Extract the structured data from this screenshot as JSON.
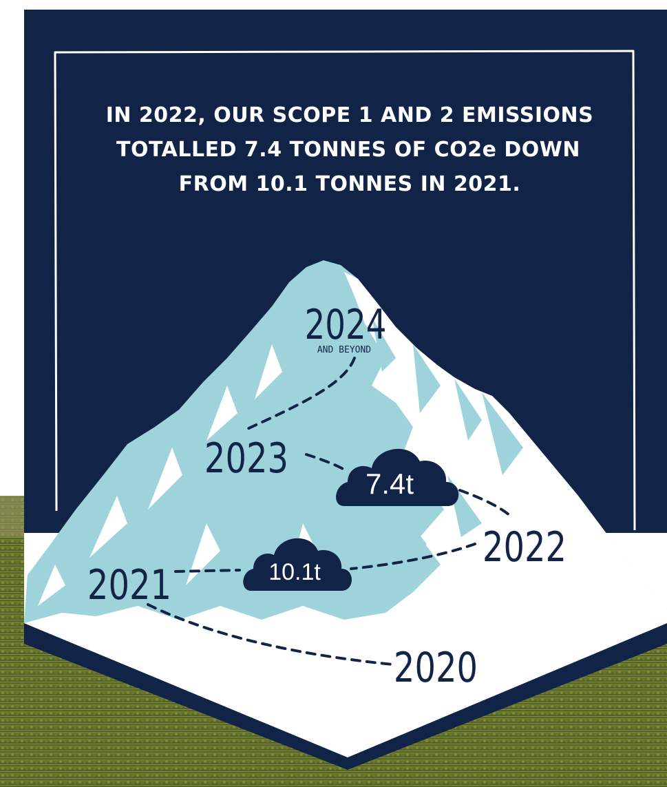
{
  "headline": {
    "line1": "IN 2022, OUR SCOPE 1 AND 2 EMISSIONS",
    "line2": "TOTALLED 7.4 TONNES OF CO2e DOWN",
    "line3": "FROM 10.1 TONNES IN 2021."
  },
  "timeline": {
    "y2024": "2024",
    "y2024_sub": "AND BEYOND",
    "y2023": "2023",
    "y2022": "2022",
    "y2021": "2021",
    "y2020": "2020"
  },
  "emissions": {
    "value_2022": "7.4t",
    "value_2021": "10.1t"
  },
  "colors": {
    "navy": "#112448",
    "ice_blue": "#9fd3dc",
    "snow": "#ffffff",
    "field_green": "#6b7a2e"
  }
}
